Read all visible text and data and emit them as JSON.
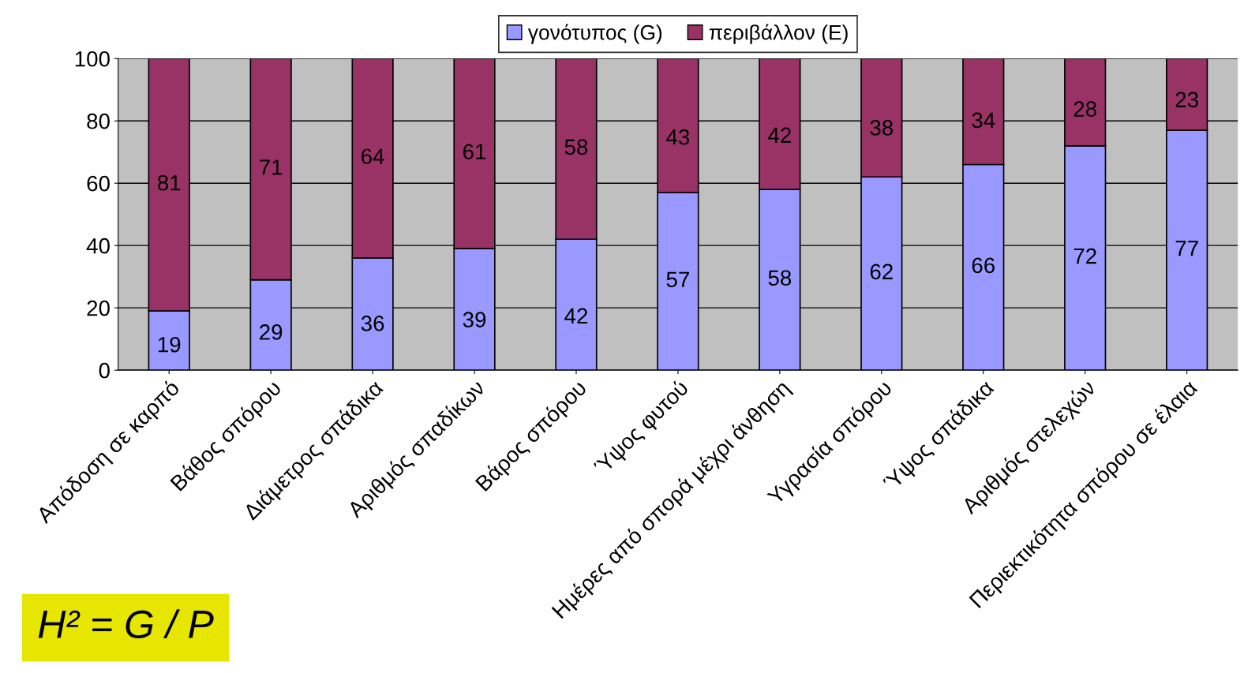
{
  "chart_data": {
    "type": "bar",
    "stacked": true,
    "categories": [
      "Απόδοση σε καρπό",
      "Βάθος σπόρου",
      "Διάμετρος σπάδικα",
      "Αριθμός σπαδίκων",
      "Βάρος σπόρου",
      "Ύψος φυτού",
      "Ημέρες από σπορά μέχρι άνθηση",
      "Υγρασία σπόρου",
      "Ύψος σπάδικα",
      "Αριθμός στελεχών",
      "Περιεκτικότητα σπόρου σε έλαια"
    ],
    "series": [
      {
        "name": "γονότυπος (G)",
        "color": "#9999ff",
        "values": [
          19,
          29,
          36,
          39,
          42,
          57,
          58,
          62,
          66,
          72,
          77
        ]
      },
      {
        "name": "περιβάλλον (E)",
        "color": "#993366",
        "values": [
          81,
          71,
          64,
          61,
          58,
          43,
          42,
          38,
          34,
          28,
          23
        ]
      }
    ],
    "ylim": [
      0,
      100
    ],
    "yticks": [
      0,
      20,
      40,
      60,
      80,
      100
    ],
    "grid": "y",
    "legend": "top",
    "data_labels": true,
    "annotations": [
      "H² = G / P"
    ]
  }
}
